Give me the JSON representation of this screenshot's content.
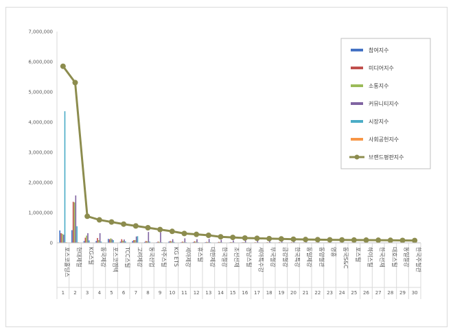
{
  "chart_data": {
    "type": "bar",
    "title": "",
    "xlabel": "",
    "ylabel": "",
    "ylim": [
      0,
      7000000
    ],
    "yticks": [
      "0",
      "1,000,000",
      "2,000,000",
      "3,000,000",
      "4,000,000",
      "5,000,000",
      "6,000,000",
      "7,000,000"
    ],
    "grid": false,
    "legend_position": "top-right",
    "ranks": [
      "1",
      "2",
      "3",
      "4",
      "5",
      "6",
      "7",
      "8",
      "9",
      "10",
      "11",
      "12",
      "13",
      "14",
      "15",
      "16",
      "17",
      "18",
      "19",
      "20",
      "21",
      "22",
      "23",
      "24",
      "25",
      "26",
      "27",
      "28",
      "29",
      "30"
    ],
    "categories": [
      "포스코홀딩스",
      "현대제철",
      "KG스틸",
      "동국제강",
      "포스코엠텍",
      "TCC스틸",
      "고려제강",
      "동국산업",
      "아주스틸",
      "KG ETS",
      "세아제강",
      "휴스틸",
      "대한제강",
      "한국철강",
      "조선선재",
      "경남스틸",
      "세아특수강",
      "부국철강",
      "금강철강",
      "한국특강",
      "동일제강",
      "동양철관",
      "영흥",
      "동국S&C",
      "포스틸",
      "하이스틸",
      "한국선재",
      "대호스틸",
      "동일철강",
      "한국주철관"
    ],
    "series": [
      {
        "name": "참여지수",
        "kind": "bar",
        "color": "#4472c4",
        "values": [
          410000,
          420000,
          60000,
          60000,
          130000,
          40000,
          60000,
          30000,
          20000,
          40000,
          20000,
          25000,
          20000,
          15000,
          15000,
          15000,
          10000,
          10000,
          12000,
          10000,
          10000,
          10000,
          10000,
          10000,
          10000,
          8000,
          8000,
          8000,
          8000,
          8000
        ]
      },
      {
        "name": "미디어지수",
        "kind": "bar",
        "color": "#c0504d",
        "values": [
          320000,
          1360000,
          170000,
          160000,
          120000,
          120000,
          90000,
          60000,
          40000,
          60000,
          40000,
          50000,
          30000,
          30000,
          25000,
          20000,
          20000,
          20000,
          20000,
          20000,
          15000,
          15000,
          15000,
          15000,
          15000,
          12000,
          12000,
          12000,
          12000,
          12000
        ]
      },
      {
        "name": "소통지수",
        "kind": "bar",
        "color": "#9bbb59",
        "values": [
          300000,
          1340000,
          240000,
          90000,
          150000,
          70000,
          90000,
          50000,
          30000,
          50000,
          30000,
          40000,
          25000,
          25000,
          20000,
          20000,
          15000,
          15000,
          15000,
          15000,
          12000,
          12000,
          12000,
          12000,
          12000,
          10000,
          10000,
          10000,
          10000,
          10000
        ]
      },
      {
        "name": "커뮤니티지수",
        "kind": "bar",
        "color": "#8064a2",
        "values": [
          270000,
          1570000,
          320000,
          320000,
          120000,
          110000,
          210000,
          360000,
          350000,
          120000,
          150000,
          120000,
          130000,
          100000,
          80000,
          80000,
          80000,
          70000,
          70000,
          60000,
          50000,
          50000,
          50000,
          50000,
          50000,
          40000,
          40000,
          40000,
          40000,
          40000
        ]
      },
      {
        "name": "시장지수",
        "kind": "bar",
        "color": "#4bacc6",
        "values": [
          4360000,
          550000,
          80000,
          40000,
          90000,
          50000,
          220000,
          40000,
          20000,
          30000,
          20000,
          20000,
          20000,
          15000,
          15000,
          15000,
          15000,
          15000,
          15000,
          15000,
          15000,
          15000,
          15000,
          15000,
          15000,
          12000,
          12000,
          12000,
          12000,
          12000
        ]
      },
      {
        "name": "사회공헌지수",
        "kind": "bar",
        "color": "#f79646",
        "values": [
          20000,
          20000,
          10000,
          5000,
          5000,
          5000,
          5000,
          5000,
          5000,
          5000,
          5000,
          5000,
          5000,
          5000,
          5000,
          5000,
          5000,
          5000,
          5000,
          5000,
          5000,
          5000,
          5000,
          5000,
          5000,
          5000,
          5000,
          5000,
          5000,
          5000
        ]
      },
      {
        "name": "브랜드평판지수",
        "kind": "line",
        "color": "#8c8c4e",
        "values": [
          5850000,
          5310000,
          880000,
          760000,
          690000,
          620000,
          560000,
          500000,
          440000,
          380000,
          310000,
          280000,
          250000,
          200000,
          180000,
          160000,
          150000,
          140000,
          130000,
          120000,
          110000,
          105000,
          100000,
          97000,
          93000,
          90000,
          87000,
          84000,
          80000,
          77000
        ]
      }
    ]
  }
}
